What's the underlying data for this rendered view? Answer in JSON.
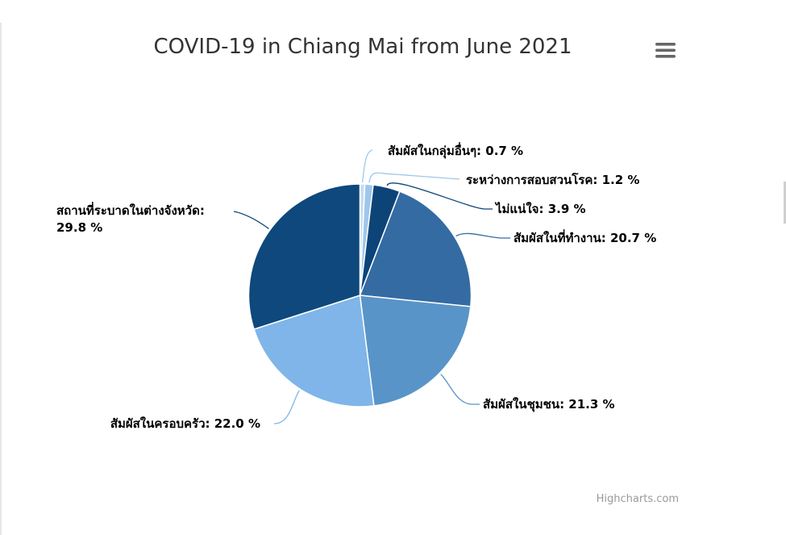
{
  "chart_data": {
    "type": "pie",
    "title": "COVID-19 in Chiang Mai from June 2021",
    "value_suffix": " %",
    "slices": [
      {
        "name": "สัมผัสในกลุ่มอื่นๆ",
        "value": 0.7,
        "color": "#c6ddf2"
      },
      {
        "name": "ระหว่างการสอบสวนโรค",
        "value": 1.2,
        "color": "#9ec7ea"
      },
      {
        "name": "ไม่แน่ใจ",
        "value": 3.9,
        "color": "#0c4478"
      },
      {
        "name": "สัมผัสในที่ทำงาน",
        "value": 20.7,
        "color": "#346ba3"
      },
      {
        "name": "สัมผัสในชุมชน",
        "value": 21.3,
        "color": "#5994c8"
      },
      {
        "name": "สัมผัสในครอบครัว",
        "value": 22.0,
        "color": "#7fb5e9"
      },
      {
        "name": "สถานที่ระบาดในต่างจังหวัด",
        "value": 29.8,
        "color": "#0e487c"
      }
    ]
  },
  "credits": "Highcharts.com",
  "menu_icon": "hamburger-menu-icon"
}
